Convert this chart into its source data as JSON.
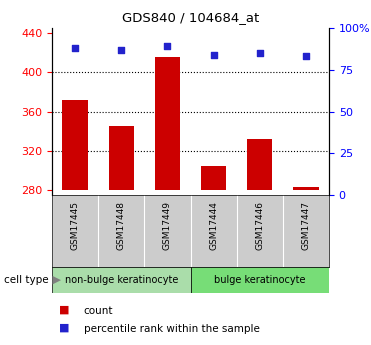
{
  "title": "GDS840 / 104684_at",
  "samples": [
    "GSM17445",
    "GSM17448",
    "GSM17449",
    "GSM17444",
    "GSM17446",
    "GSM17447"
  ],
  "counts": [
    372,
    345,
    415,
    305,
    332,
    283
  ],
  "percentiles": [
    88,
    87,
    89,
    84,
    85,
    83
  ],
  "ylim_left": [
    275,
    445
  ],
  "ylim_right": [
    0,
    100
  ],
  "yticks_left": [
    280,
    320,
    360,
    400,
    440
  ],
  "yticks_right": [
    0,
    25,
    50,
    75,
    100
  ],
  "ytick_labels_right": [
    "0",
    "25",
    "50",
    "75",
    "100%"
  ],
  "bar_color": "#cc0000",
  "dot_color": "#2222cc",
  "bar_bottom": 280,
  "cell_types": [
    "non-bulge keratinocyte",
    "bulge keratinocyte"
  ],
  "cell_type_colors": [
    "#aaddaa",
    "#77dd77"
  ],
  "group_label": "cell type",
  "legend_items": [
    "count",
    "percentile rank within the sample"
  ],
  "tick_label_area_color": "#cccccc",
  "grid_yticks": [
    320,
    360,
    400
  ]
}
